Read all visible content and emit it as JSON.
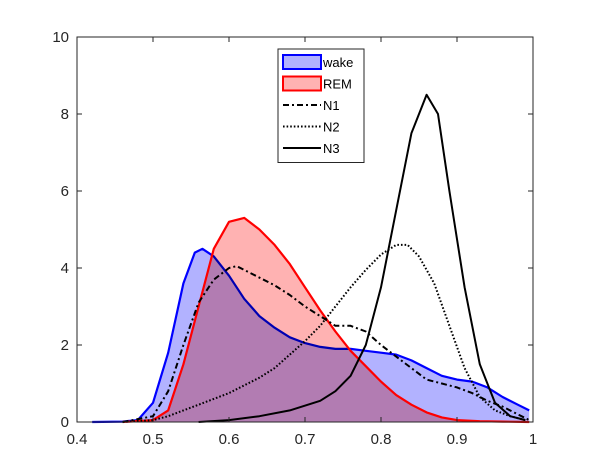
{
  "chart_data": {
    "type": "area",
    "title": "",
    "xlabel": "",
    "ylabel": "",
    "xlim": [
      0.4,
      1.0
    ],
    "ylim": [
      0,
      10
    ],
    "xticks": [
      0.4,
      0.5,
      0.6,
      0.7,
      0.8,
      0.9,
      1.0
    ],
    "xtick_labels": [
      "0.4",
      "0.5",
      "0.6",
      "0.7",
      "0.8",
      "0.9",
      "1"
    ],
    "yticks": [
      0,
      2,
      4,
      6,
      8,
      10
    ],
    "ytick_labels": [
      "0",
      "2",
      "4",
      "6",
      "8",
      "10"
    ],
    "grid": false,
    "legend": {
      "position": "top-center",
      "entries": [
        "wake",
        "REM",
        "N1",
        "N2",
        "N3"
      ]
    },
    "series": [
      {
        "name": "wake",
        "style": "filled-area",
        "color": "#0000ff",
        "fill": "#b2b2ff",
        "points": [
          [
            0.42,
            0
          ],
          [
            0.46,
            0.01
          ],
          [
            0.48,
            0.05
          ],
          [
            0.5,
            0.5
          ],
          [
            0.52,
            1.8
          ],
          [
            0.54,
            3.6
          ],
          [
            0.555,
            4.4
          ],
          [
            0.565,
            4.5
          ],
          [
            0.58,
            4.3
          ],
          [
            0.6,
            3.8
          ],
          [
            0.62,
            3.2
          ],
          [
            0.64,
            2.75
          ],
          [
            0.66,
            2.45
          ],
          [
            0.68,
            2.2
          ],
          [
            0.7,
            2.05
          ],
          [
            0.72,
            1.95
          ],
          [
            0.74,
            1.9
          ],
          [
            0.76,
            1.9
          ],
          [
            0.78,
            1.85
          ],
          [
            0.8,
            1.8
          ],
          [
            0.82,
            1.75
          ],
          [
            0.84,
            1.6
          ],
          [
            0.86,
            1.4
          ],
          [
            0.88,
            1.2
          ],
          [
            0.9,
            1.1
          ],
          [
            0.92,
            1.05
          ],
          [
            0.94,
            0.9
          ],
          [
            0.96,
            0.65
          ],
          [
            0.98,
            0.45
          ],
          [
            0.995,
            0.3
          ]
        ]
      },
      {
        "name": "REM",
        "style": "filled-area",
        "color": "#ff0000",
        "fill": "#ffb2b2",
        "points": [
          [
            0.46,
            0
          ],
          [
            0.5,
            0.05
          ],
          [
            0.52,
            0.3
          ],
          [
            0.54,
            1.5
          ],
          [
            0.56,
            3.0
          ],
          [
            0.58,
            4.5
          ],
          [
            0.6,
            5.2
          ],
          [
            0.62,
            5.3
          ],
          [
            0.64,
            5.0
          ],
          [
            0.66,
            4.6
          ],
          [
            0.68,
            4.1
          ],
          [
            0.7,
            3.5
          ],
          [
            0.72,
            2.9
          ],
          [
            0.74,
            2.35
          ],
          [
            0.76,
            1.85
          ],
          [
            0.78,
            1.45
          ],
          [
            0.8,
            1.05
          ],
          [
            0.82,
            0.7
          ],
          [
            0.84,
            0.45
          ],
          [
            0.86,
            0.25
          ],
          [
            0.88,
            0.12
          ],
          [
            0.9,
            0.05
          ],
          [
            0.93,
            0.02
          ],
          [
            0.96,
            0.01
          ],
          [
            0.995,
            0
          ]
        ]
      },
      {
        "name": "N1",
        "style": "dash-dot",
        "color": "#000000",
        "points": [
          [
            0.46,
            0
          ],
          [
            0.5,
            0.15
          ],
          [
            0.52,
            0.8
          ],
          [
            0.54,
            2.0
          ],
          [
            0.56,
            3.1
          ],
          [
            0.58,
            3.7
          ],
          [
            0.6,
            4.0
          ],
          [
            0.61,
            4.05
          ],
          [
            0.62,
            3.95
          ],
          [
            0.64,
            3.75
          ],
          [
            0.66,
            3.55
          ],
          [
            0.68,
            3.3
          ],
          [
            0.7,
            3.0
          ],
          [
            0.72,
            2.75
          ],
          [
            0.74,
            2.5
          ],
          [
            0.76,
            2.5
          ],
          [
            0.78,
            2.35
          ],
          [
            0.8,
            2.0
          ],
          [
            0.82,
            1.7
          ],
          [
            0.84,
            1.4
          ],
          [
            0.86,
            1.1
          ],
          [
            0.88,
            1.0
          ],
          [
            0.9,
            0.9
          ],
          [
            0.92,
            0.75
          ],
          [
            0.94,
            0.55
          ],
          [
            0.96,
            0.4
          ],
          [
            0.98,
            0.2
          ],
          [
            0.995,
            0.05
          ]
        ]
      },
      {
        "name": "N2",
        "style": "dotted",
        "color": "#000000",
        "points": [
          [
            0.46,
            0
          ],
          [
            0.5,
            0.05
          ],
          [
            0.52,
            0.15
          ],
          [
            0.54,
            0.3
          ],
          [
            0.56,
            0.45
          ],
          [
            0.58,
            0.6
          ],
          [
            0.6,
            0.75
          ],
          [
            0.62,
            0.95
          ],
          [
            0.64,
            1.15
          ],
          [
            0.66,
            1.4
          ],
          [
            0.68,
            1.75
          ],
          [
            0.7,
            2.1
          ],
          [
            0.72,
            2.5
          ],
          [
            0.74,
            3.0
          ],
          [
            0.76,
            3.5
          ],
          [
            0.78,
            3.95
          ],
          [
            0.8,
            4.35
          ],
          [
            0.82,
            4.6
          ],
          [
            0.835,
            4.6
          ],
          [
            0.85,
            4.3
          ],
          [
            0.87,
            3.6
          ],
          [
            0.89,
            2.5
          ],
          [
            0.91,
            1.4
          ],
          [
            0.93,
            0.65
          ],
          [
            0.95,
            0.3
          ],
          [
            0.97,
            0.15
          ],
          [
            0.99,
            0.05
          ]
        ]
      },
      {
        "name": "N3",
        "style": "solid",
        "color": "#000000",
        "points": [
          [
            0.56,
            0
          ],
          [
            0.6,
            0.05
          ],
          [
            0.64,
            0.15
          ],
          [
            0.68,
            0.3
          ],
          [
            0.72,
            0.55
          ],
          [
            0.74,
            0.8
          ],
          [
            0.76,
            1.2
          ],
          [
            0.78,
            2.0
          ],
          [
            0.8,
            3.5
          ],
          [
            0.82,
            5.5
          ],
          [
            0.84,
            7.5
          ],
          [
            0.86,
            8.5
          ],
          [
            0.875,
            8.0
          ],
          [
            0.89,
            6.0
          ],
          [
            0.91,
            3.5
          ],
          [
            0.93,
            1.5
          ],
          [
            0.95,
            0.5
          ],
          [
            0.97,
            0.15
          ],
          [
            0.99,
            0.05
          ]
        ]
      }
    ]
  }
}
